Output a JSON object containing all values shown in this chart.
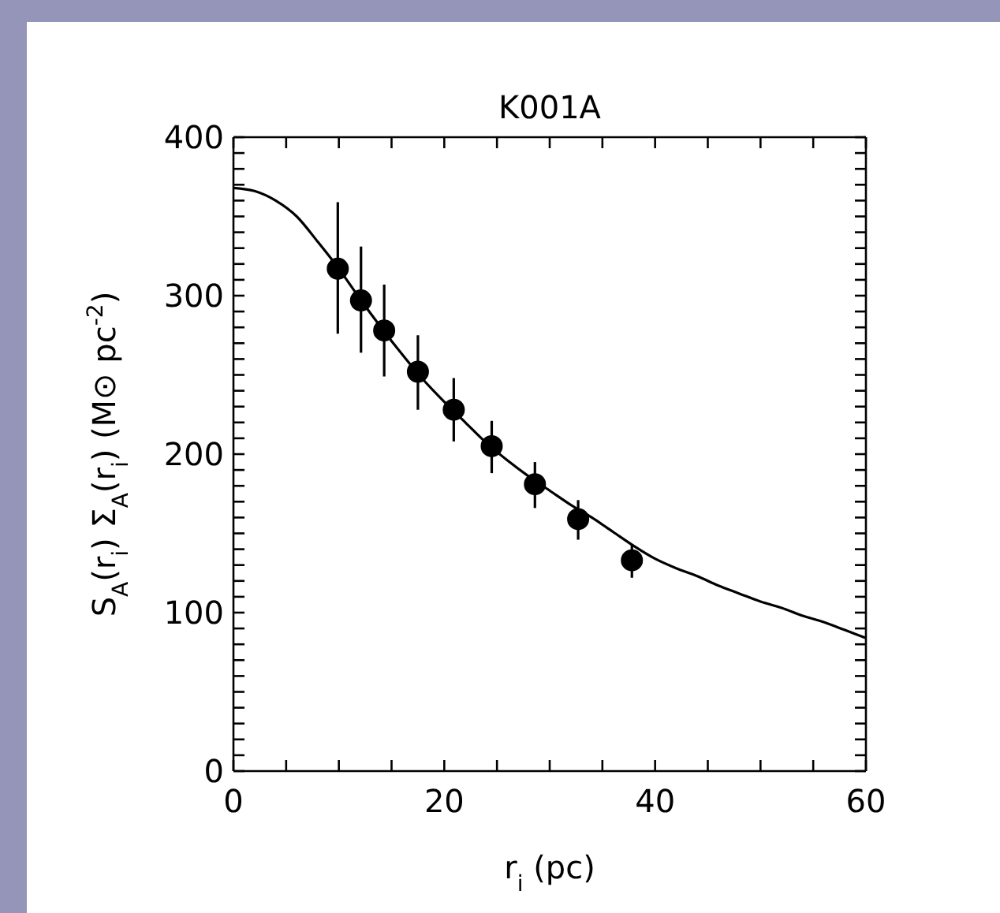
{
  "chart_data": {
    "type": "scatter",
    "title": "K001A",
    "xlabel": "r$_{i}$ (pc)",
    "ylabel": "S$_{A}$(r$_{i}$) Σ$_{A}$(r$_{i}$) (M⊙ pc$^{-2}$)",
    "xlim": [
      0,
      60
    ],
    "ylim": [
      0,
      400
    ],
    "xticks": [
      0,
      {
        "value": 5,
        "label": null
      },
      {
        "value": 10,
        "label": null
      },
      {
        "value": 15,
        "label": null
      },
      20,
      {
        "value": 25,
        "label": null
      },
      {
        "value": 30,
        "label": null
      },
      {
        "value": 35,
        "label": null
      },
      40,
      {
        "value": 45,
        "label": null
      },
      {
        "value": 50,
        "label": null
      },
      {
        "value": 55,
        "label": null
      },
      60
    ],
    "yticks": [
      0,
      {
        "value": 10,
        "label": null
      },
      {
        "value": 20,
        "label": null
      },
      {
        "value": 30,
        "label": null
      },
      {
        "value": 40,
        "label": null
      },
      {
        "value": 50,
        "label": null
      },
      {
        "value": 60,
        "label": null
      },
      {
        "value": 70,
        "label": null
      },
      {
        "value": 80,
        "label": null
      },
      {
        "value": 90,
        "label": null
      },
      100,
      {
        "value": 110,
        "label": null
      },
      {
        "value": 120,
        "label": null
      },
      {
        "value": 130,
        "label": null
      },
      {
        "value": 140,
        "label": null
      },
      {
        "value": 150,
        "label": null
      },
      {
        "value": 160,
        "label": null
      },
      {
        "value": 170,
        "label": null
      },
      {
        "value": 180,
        "label": null
      },
      {
        "value": 190,
        "label": null
      },
      200,
      {
        "value": 210,
        "label": null
      },
      {
        "value": 220,
        "label": null
      },
      {
        "value": 230,
        "label": null
      },
      {
        "value": 240,
        "label": null
      },
      {
        "value": 250,
        "label": null
      },
      {
        "value": 260,
        "label": null
      },
      {
        "value": 270,
        "label": null
      },
      {
        "value": 280,
        "label": null
      },
      {
        "value": 290,
        "label": null
      },
      300,
      {
        "value": 310,
        "label": null
      },
      {
        "value": 320,
        "label": null
      },
      {
        "value": 330,
        "label": null
      },
      {
        "value": 340,
        "label": null
      },
      {
        "value": 350,
        "label": null
      },
      {
        "value": 360,
        "label": null
      },
      {
        "value": 370,
        "label": null
      },
      {
        "value": 380,
        "label": null
      },
      {
        "value": 390,
        "label": null
      },
      400
    ],
    "grid": false,
    "legend": false,
    "series": [
      {
        "color": "#000000",
        "marker": "circle",
        "x": [
          9.9,
          12.1,
          14.3,
          17.5,
          20.9,
          24.5,
          28.6,
          32.7,
          37.8
        ],
        "values": [
          317,
          297,
          278,
          252,
          228,
          205,
          181,
          159,
          133
        ],
        "errors": [
          [
            276,
            359
          ],
          [
            264,
            331
          ],
          [
            249,
            307
          ],
          [
            228,
            275
          ],
          [
            208,
            248
          ],
          [
            188,
            221
          ],
          [
            166,
            195
          ],
          [
            146,
            171
          ],
          [
            122,
            143
          ]
        ]
      },
      {
        "type": "line",
        "color": "#000000",
        "marker": "none",
        "line_style": "solid",
        "x": [
          0,
          2,
          4,
          6,
          8,
          10,
          12,
          14,
          16,
          18,
          20,
          22,
          24,
          26,
          28,
          30,
          32,
          34,
          36,
          38,
          40,
          42,
          44,
          46,
          48,
          50,
          52,
          54,
          56,
          58,
          60
        ],
        "values": [
          368,
          366,
          360,
          350,
          334,
          317,
          298,
          280,
          263,
          247,
          233,
          220,
          207,
          196,
          186,
          177,
          168,
          160,
          151,
          142,
          134,
          128,
          123,
          117,
          112,
          107,
          103,
          98,
          94,
          89,
          84
        ]
      }
    ]
  }
}
